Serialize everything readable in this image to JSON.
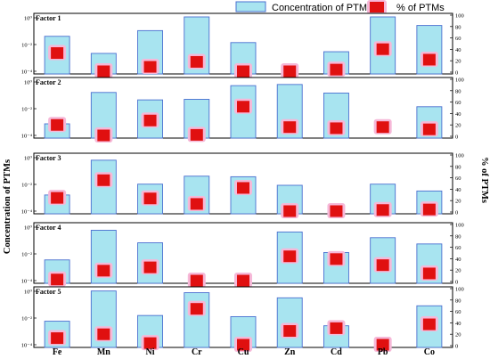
{
  "chart_data": {
    "type": "bar",
    "categories": [
      "Fe",
      "Mn",
      "Ni",
      "Cr",
      "Cu",
      "Zn",
      "Cd",
      "Pb",
      "Co"
    ],
    "legend": [
      "Concentration of PTMs",
      "% of PTMs"
    ],
    "y_left_label": "Concentration of PTMs",
    "y_right_label": "% of PTMs",
    "y_right_ticks": [
      "0",
      "20",
      "40",
      "60",
      "80",
      "100"
    ],
    "colors": {
      "bar_fill": "#a8e4f0",
      "bar_stroke": "#4a6fd0",
      "marker": "#e01010",
      "marker_halo": "#f6b8d8"
    },
    "panels": [
      {
        "title": "Factor 1",
        "left_ticks": [
          "10⁰",
          "10⁻²",
          "10⁻⁴"
        ],
        "bar_fraction": [
          0.66,
          0.36,
          0.76,
          1.0,
          0.55,
          0.0,
          0.39,
          1.0,
          0.85
        ],
        "percent": [
          33,
          0,
          8,
          17,
          0,
          0,
          3,
          40,
          21
        ]
      },
      {
        "title": "Factor 2",
        "left_ticks": [
          "10⁰",
          "10⁻²",
          "10⁻⁴"
        ],
        "bar_fraction": [
          0.25,
          0.8,
          0.67,
          0.68,
          0.92,
          0.94,
          0.79,
          0.0,
          0.55
        ],
        "percent": [
          19,
          0,
          27,
          1,
          52,
          15,
          13,
          15,
          11
        ]
      },
      {
        "title": "Factor 3",
        "left_ticks": [
          "10⁰",
          "10⁻²",
          "10⁻⁴"
        ],
        "bar_fraction": [
          0.33,
          0.94,
          0.52,
          0.66,
          0.65,
          0.5,
          0.0,
          0.52,
          0.4
        ],
        "percent": [
          24,
          56,
          23,
          13,
          42,
          0,
          0,
          2,
          3
        ]
      },
      {
        "title": "Factor 4",
        "left_ticks": [
          "10⁰",
          "10⁻²",
          "10⁻⁴"
        ],
        "bar_fraction": [
          0.41,
          0.93,
          0.71,
          0.0,
          0.0,
          0.9,
          0.54,
          0.8,
          0.69
        ],
        "percent": [
          2,
          18,
          24,
          0,
          0,
          44,
          39,
          28,
          13
        ]
      },
      {
        "title": "Factor 5",
        "left_ticks": [
          "10⁰",
          "10⁻²",
          "10⁻⁴"
        ],
        "bar_fraction": [
          0.46,
          0.99,
          0.56,
          0.96,
          0.54,
          0.87,
          0.38,
          0.0,
          0.73
        ],
        "percent": [
          12,
          19,
          3,
          65,
          0,
          25,
          30,
          0,
          37
        ]
      }
    ]
  }
}
